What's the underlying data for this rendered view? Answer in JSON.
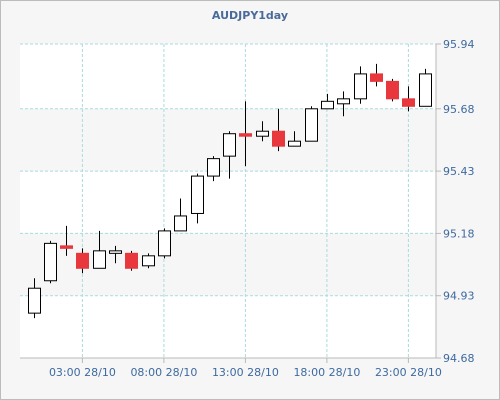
{
  "chart_data": {
    "type": "candlestick",
    "title": "AUDJPY1day",
    "ylim": [
      94.68,
      95.94
    ],
    "y_ticks": [
      "95.94",
      "95.68",
      "95.43",
      "95.18",
      "94.93",
      "94.68"
    ],
    "x_ticks": [
      "03:00 28/10",
      "08:00 28/10",
      "13:00 28/10",
      "18:00 28/10",
      "23:00 28/10"
    ],
    "grid": true,
    "colors": {
      "up_fill": "#ffffff",
      "down_fill": "#e8373d",
      "outline": "#000000",
      "grid": "#a9dbe0",
      "axis": "#b9b9b9",
      "tick_label": "#3e6aa0",
      "title": "#4a6a9a",
      "band_light": "#ffffff",
      "band_dark": "#f6f6f6"
    },
    "candles": [
      {
        "t": "00:00 28/10",
        "o": 94.86,
        "h": 95.0,
        "l": 94.84,
        "c": 94.96
      },
      {
        "t": "01:00 28/10",
        "o": 94.99,
        "h": 95.15,
        "l": 94.98,
        "c": 95.14
      },
      {
        "t": "02:00 28/10",
        "o": 95.13,
        "h": 95.21,
        "l": 95.09,
        "c": 95.12
      },
      {
        "t": "03:00 28/10",
        "o": 95.1,
        "h": 95.12,
        "l": 95.02,
        "c": 95.04
      },
      {
        "t": "04:00 28/10",
        "o": 95.04,
        "h": 95.19,
        "l": 95.04,
        "c": 95.11
      },
      {
        "t": "05:00 28/10",
        "o": 95.1,
        "h": 95.13,
        "l": 95.06,
        "c": 95.11
      },
      {
        "t": "06:00 28/10",
        "o": 95.1,
        "h": 95.11,
        "l": 95.03,
        "c": 95.04
      },
      {
        "t": "07:00 28/10",
        "o": 95.05,
        "h": 95.1,
        "l": 95.04,
        "c": 95.09
      },
      {
        "t": "08:00 28/10",
        "o": 95.09,
        "h": 95.2,
        "l": 95.08,
        "c": 95.19
      },
      {
        "t": "09:00 28/10",
        "o": 95.19,
        "h": 95.32,
        "l": 95.19,
        "c": 95.25
      },
      {
        "t": "10:00 28/10",
        "o": 95.26,
        "h": 95.42,
        "l": 95.22,
        "c": 95.41
      },
      {
        "t": "11:00 28/10",
        "o": 95.41,
        "h": 95.49,
        "l": 95.39,
        "c": 95.48
      },
      {
        "t": "12:00 28/10",
        "o": 95.49,
        "h": 95.59,
        "l": 95.4,
        "c": 95.58
      },
      {
        "t": "13:00 28/10",
        "o": 95.58,
        "h": 95.71,
        "l": 95.45,
        "c": 95.57
      },
      {
        "t": "14:00 28/10",
        "o": 95.57,
        "h": 95.63,
        "l": 95.55,
        "c": 95.59
      },
      {
        "t": "15:00 28/10",
        "o": 95.59,
        "h": 95.68,
        "l": 95.51,
        "c": 95.53
      },
      {
        "t": "16:00 28/10",
        "o": 95.53,
        "h": 95.59,
        "l": 95.53,
        "c": 95.55
      },
      {
        "t": "17:00 28/10",
        "o": 95.55,
        "h": 95.69,
        "l": 95.55,
        "c": 95.68
      },
      {
        "t": "18:00 28/10",
        "o": 95.68,
        "h": 95.74,
        "l": 95.68,
        "c": 95.71
      },
      {
        "t": "19:00 28/10",
        "o": 95.7,
        "h": 95.75,
        "l": 95.65,
        "c": 95.72
      },
      {
        "t": "20:00 28/10",
        "o": 95.72,
        "h": 95.85,
        "l": 95.7,
        "c": 95.82
      },
      {
        "t": "21:00 28/10",
        "o": 95.82,
        "h": 95.86,
        "l": 95.77,
        "c": 95.79
      },
      {
        "t": "22:00 28/10",
        "o": 95.79,
        "h": 95.8,
        "l": 95.71,
        "c": 95.72
      },
      {
        "t": "23:00 28/10",
        "o": 95.72,
        "h": 95.77,
        "l": 95.67,
        "c": 95.69
      },
      {
        "t": "00:00 29/10",
        "o": 95.69,
        "h": 95.84,
        "l": 95.69,
        "c": 95.82
      }
    ]
  }
}
